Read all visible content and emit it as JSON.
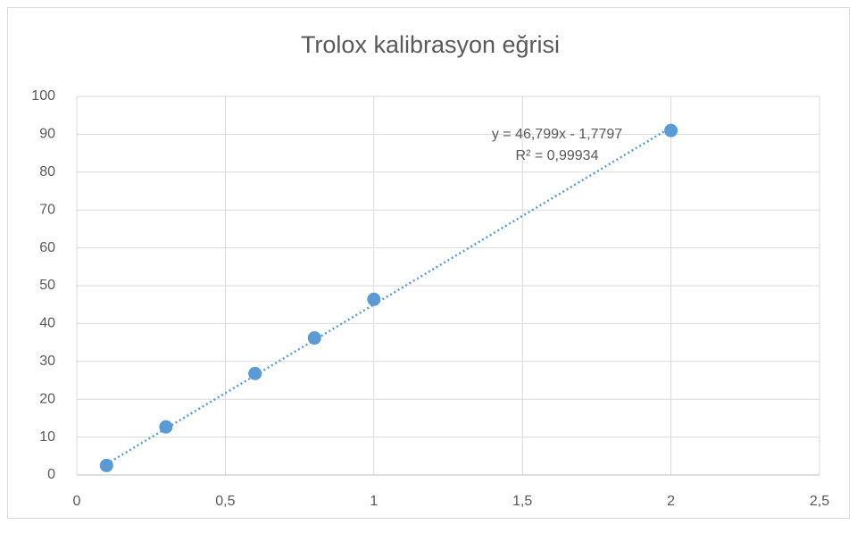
{
  "chart_data": {
    "type": "scatter",
    "title": "Trolox kalibrasyon eğrisi",
    "x": [
      0.1,
      0.3,
      0.6,
      0.8,
      1,
      2
    ],
    "values": [
      2.5,
      12.7,
      26.8,
      36.2,
      46.4,
      91
    ],
    "color": "#5b9bd5",
    "xlim": [
      0,
      2.5
    ],
    "xticks": [
      0,
      {
        "value": 0.5,
        "label": "0,5"
      },
      1,
      {
        "value": 1.5,
        "label": "1,5"
      },
      2,
      {
        "value": 2.5,
        "label": "2,5"
      }
    ],
    "ylim": [
      0,
      100
    ],
    "yticks": [
      0,
      10,
      20,
      30,
      40,
      50,
      60,
      70,
      80,
      90,
      100
    ],
    "grid": true,
    "trendline": {
      "slope": 46.799,
      "intercept": -1.7797,
      "equation": "y = 46,799x - 1,7797",
      "r_squared": "R² = 0,99934"
    }
  }
}
